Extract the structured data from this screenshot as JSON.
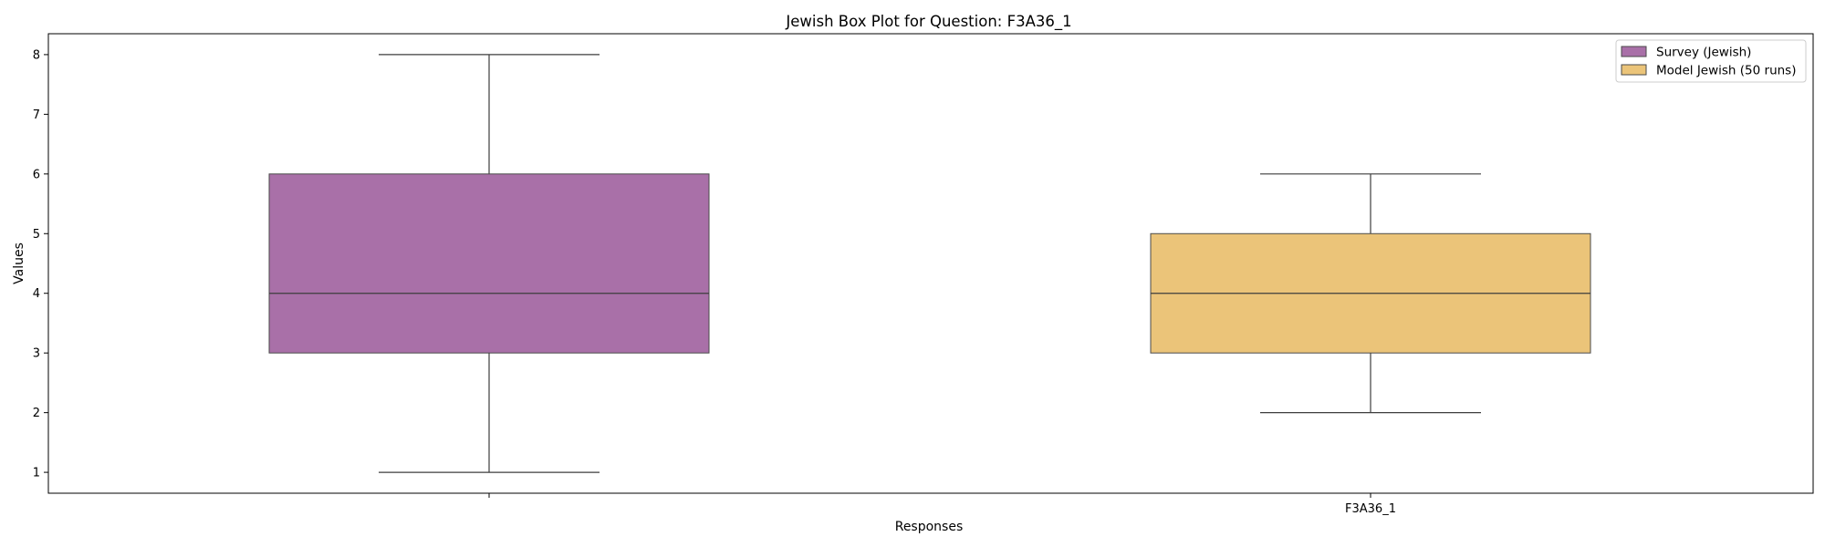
{
  "chart_data": {
    "type": "box",
    "title": "Jewish Box Plot for Question: F3A36_1",
    "xlabel": "Responses",
    "ylabel": "Values",
    "ylim": [
      0.65,
      8.35
    ],
    "yticks": [
      1,
      2,
      3,
      4,
      5,
      6,
      7,
      8
    ],
    "xticklabels": [
      "",
      "F3A36_1"
    ],
    "grid": false,
    "legend_position": "top-right",
    "series": [
      {
        "name": "Survey (Jewish)",
        "color": "#a970a8",
        "whisker_low": 1,
        "q1": 3,
        "median": 4,
        "q3": 6,
        "whisker_high": 8
      },
      {
        "name": "Model Jewish (50 runs)",
        "color": "#ebc479",
        "whisker_low": 2,
        "q1": 3,
        "median": 4,
        "q3": 5,
        "whisker_high": 6
      }
    ]
  }
}
